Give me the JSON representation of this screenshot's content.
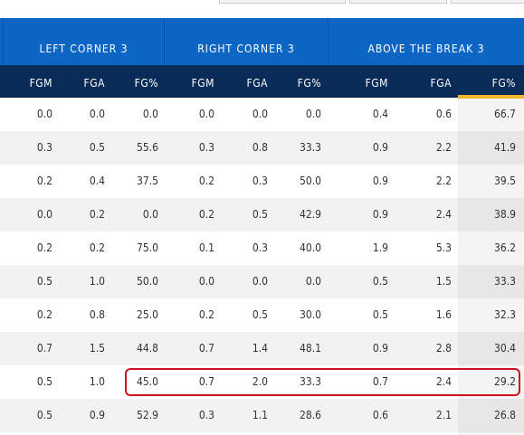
{
  "groups": [
    "LEFT CORNER 3",
    "RIGHT CORNER 3",
    "ABOVE THE BREAK 3"
  ],
  "columns": [
    "FGM",
    "FGA",
    "FG%",
    "FGM",
    "FGA",
    "FG%",
    "FGM",
    "FGA",
    "FG%"
  ],
  "rows": [
    [
      "0.0",
      "0.0",
      "0.0",
      "0.0",
      "0.0",
      "0.0",
      "0.4",
      "0.6",
      "66.7"
    ],
    [
      "0.3",
      "0.5",
      "55.6",
      "0.3",
      "0.8",
      "33.3",
      "0.9",
      "2.2",
      "41.9"
    ],
    [
      "0.2",
      "0.4",
      "37.5",
      "0.2",
      "0.3",
      "50.0",
      "0.9",
      "2.2",
      "39.5"
    ],
    [
      "0.0",
      "0.2",
      "0.0",
      "0.2",
      "0.5",
      "42.9",
      "0.9",
      "2.4",
      "38.9"
    ],
    [
      "0.2",
      "0.2",
      "75.0",
      "0.1",
      "0.3",
      "40.0",
      "1.9",
      "5.3",
      "36.2"
    ],
    [
      "0.5",
      "1.0",
      "50.0",
      "0.0",
      "0.0",
      "0.0",
      "0.5",
      "1.5",
      "33.3"
    ],
    [
      "0.2",
      "0.8",
      "25.0",
      "0.2",
      "0.5",
      "30.0",
      "0.5",
      "1.6",
      "32.3"
    ],
    [
      "0.7",
      "1.5",
      "44.8",
      "0.7",
      "1.4",
      "48.1",
      "0.9",
      "2.8",
      "30.4"
    ],
    [
      "0.5",
      "1.0",
      "45.0",
      "0.7",
      "2.0",
      "33.3",
      "0.7",
      "2.4",
      "29.2"
    ],
    [
      "0.5",
      "0.9",
      "52.9",
      "0.3",
      "1.1",
      "28.6",
      "0.6",
      "2.1",
      "26.8"
    ]
  ],
  "highlight_row_index": 8,
  "sorted_column": "ABOVE THE BREAK 3 FG%",
  "colors": {
    "group_header": "#0d66c4",
    "column_header": "#0a2b57",
    "sort_indicator": "#f2b92e",
    "highlight": "#d0101e"
  }
}
